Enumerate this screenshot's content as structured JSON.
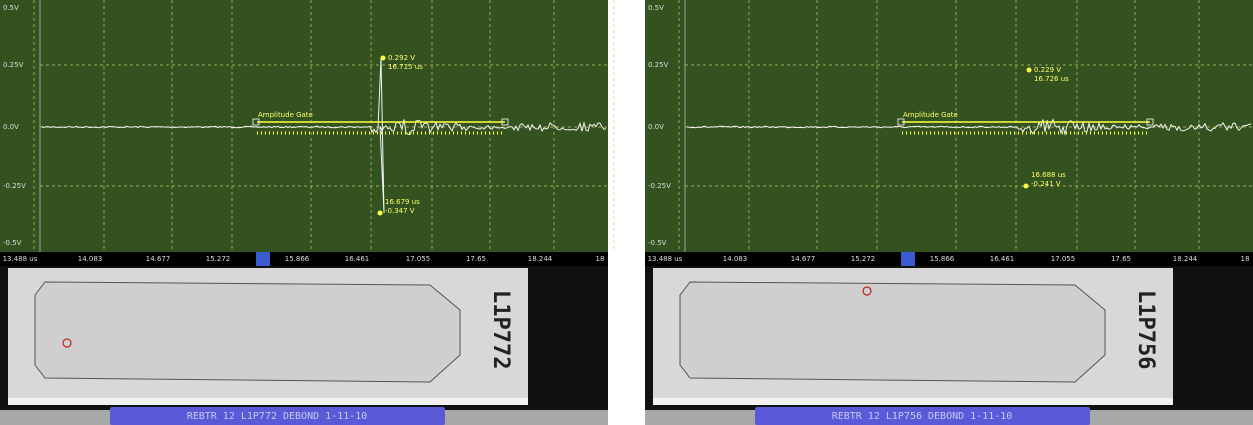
{
  "panels": [
    {
      "y_labels": [
        "0.5V",
        "0.25V",
        "0.0V",
        "-0.25V",
        "-0.5V"
      ],
      "x_labels": [
        "13.488 us",
        "14.083",
        "14.677",
        "15.272",
        "15.866",
        "16.461",
        "17.055",
        "17.65",
        "18.244",
        "18"
      ],
      "gate_label": "Amplitude Gate",
      "peak_high": {
        "amplitude": "0.292 V",
        "time": "16.715 us"
      },
      "peak_low": {
        "time": "16.679 us",
        "amplitude": "-0.347 V"
      },
      "specimen_id": "L1P772",
      "status": "REBTR 12   L1P772   DEBOND   1-11-10"
    },
    {
      "y_labels": [
        "0.5V",
        "0.25V",
        "0.0V",
        "-0.25V",
        "-0.5V"
      ],
      "x_labels": [
        "13.488 us",
        "14.083",
        "14.677",
        "15.272",
        "15.866",
        "16.461",
        "17.055",
        "17.65",
        "18.244",
        "18"
      ],
      "gate_label": "Amplitude Gate",
      "peak_high": {
        "amplitude": "0.229 V",
        "time": "16.726 us"
      },
      "peak_low": {
        "time": "16.688 us",
        "amplitude": "-0.241 V"
      },
      "specimen_id": "L1P756",
      "status": "REBTR 12   L1P756   DEBOND   1-11-10"
    }
  ]
}
